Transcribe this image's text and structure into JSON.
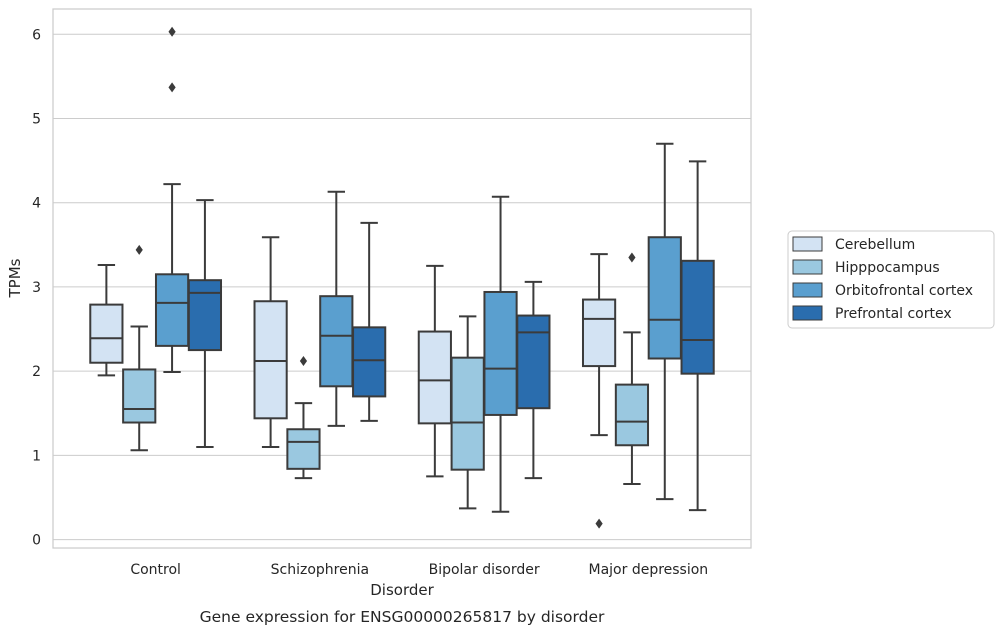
{
  "caption": "Gene expression for ENSG00000265817 by disorder",
  "chart_data": {
    "type": "box",
    "title": "",
    "xlabel": "Disorder",
    "ylabel": "TPMs",
    "ylim": [
      -0.1,
      6.3
    ],
    "yticks": [
      0,
      1,
      2,
      3,
      4,
      5,
      6
    ],
    "grid": "horizontal",
    "legend_position": "right",
    "categories": [
      "Control",
      "Schizophrenia",
      "Bipolar disorder",
      "Major depression"
    ],
    "series": [
      {
        "name": "Cerebellum",
        "color": "#d3e3f3",
        "boxes": [
          {
            "whislo": 1.95,
            "q1": 2.1,
            "med": 2.39,
            "q3": 2.79,
            "whishi": 3.26,
            "fliers": []
          },
          {
            "whislo": 1.1,
            "q1": 1.44,
            "med": 2.12,
            "q3": 2.83,
            "whishi": 3.59,
            "fliers": []
          },
          {
            "whislo": 0.75,
            "q1": 1.38,
            "med": 1.89,
            "q3": 2.47,
            "whishi": 3.25,
            "fliers": []
          },
          {
            "whislo": 1.24,
            "q1": 2.06,
            "med": 2.62,
            "q3": 2.85,
            "whishi": 3.39,
            "fliers": [
              0.19
            ]
          }
        ]
      },
      {
        "name": "Hipppocampus",
        "color": "#9ac8e0",
        "boxes": [
          {
            "whislo": 1.06,
            "q1": 1.39,
            "med": 1.55,
            "q3": 2.02,
            "whishi": 2.53,
            "fliers": [
              3.44
            ]
          },
          {
            "whislo": 0.73,
            "q1": 0.84,
            "med": 1.16,
            "q3": 1.31,
            "whishi": 1.62,
            "fliers": [
              2.12
            ]
          },
          {
            "whislo": 0.37,
            "q1": 0.83,
            "med": 1.39,
            "q3": 2.16,
            "whishi": 2.65,
            "fliers": []
          },
          {
            "whislo": 0.66,
            "q1": 1.12,
            "med": 1.4,
            "q3": 1.84,
            "whishi": 2.46,
            "fliers": [
              3.35
            ]
          }
        ]
      },
      {
        "name": "Orbitofrontal cortex",
        "color": "#5a9fcf",
        "boxes": [
          {
            "whislo": 1.99,
            "q1": 2.3,
            "med": 2.81,
            "q3": 3.15,
            "whishi": 4.22,
            "fliers": [
              5.37,
              6.03
            ]
          },
          {
            "whislo": 1.35,
            "q1": 1.82,
            "med": 2.42,
            "q3": 2.89,
            "whishi": 4.13,
            "fliers": []
          },
          {
            "whislo": 0.33,
            "q1": 1.48,
            "med": 2.03,
            "q3": 2.94,
            "whishi": 4.07,
            "fliers": []
          },
          {
            "whislo": 0.48,
            "q1": 2.15,
            "med": 2.61,
            "q3": 3.59,
            "whishi": 4.7,
            "fliers": []
          }
        ]
      },
      {
        "name": "Prefrontal cortex",
        "color": "#2a6dae",
        "boxes": [
          {
            "whislo": 1.1,
            "q1": 2.25,
            "med": 2.93,
            "q3": 3.08,
            "whishi": 4.03,
            "fliers": []
          },
          {
            "whislo": 1.41,
            "q1": 1.7,
            "med": 2.13,
            "q3": 2.52,
            "whishi": 3.76,
            "fliers": []
          },
          {
            "whislo": 0.73,
            "q1": 1.56,
            "med": 2.46,
            "q3": 2.66,
            "whishi": 3.06,
            "fliers": []
          },
          {
            "whislo": 0.35,
            "q1": 1.97,
            "med": 2.37,
            "q3": 3.31,
            "whishi": 4.49,
            "fliers": []
          }
        ]
      }
    ]
  }
}
